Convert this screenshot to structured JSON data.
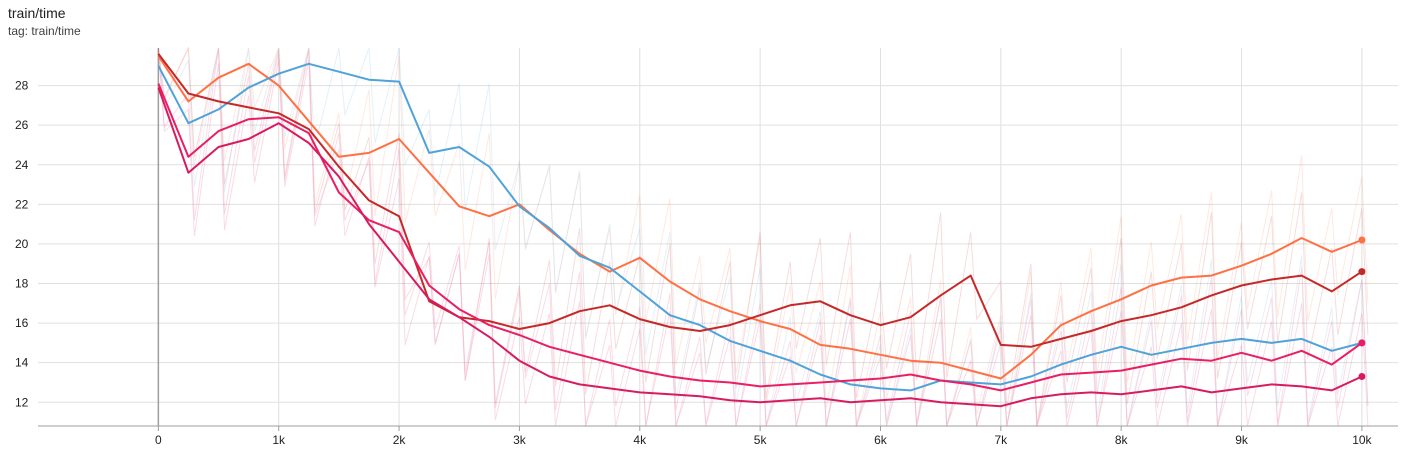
{
  "card": {
    "title": "train/time",
    "tag": "tag: train/time"
  },
  "chart_data": {
    "type": "line",
    "title": "train/time",
    "subtitle": "tag: train/time",
    "xlabel": "",
    "ylabel": "",
    "xlim": [
      -1000,
      10300
    ],
    "ylim": [
      10.8,
      29.9
    ],
    "x_ticks": [
      0,
      1000,
      2000,
      3000,
      4000,
      5000,
      6000,
      7000,
      8000,
      9000,
      10000
    ],
    "x_tick_labels": [
      "0",
      "1k",
      "2k",
      "3k",
      "4k",
      "5k",
      "6k",
      "7k",
      "8k",
      "9k",
      "10k"
    ],
    "y_ticks": [
      12,
      14,
      16,
      18,
      20,
      22,
      24,
      26,
      28
    ],
    "y_tick_labels": [
      "12",
      "14",
      "16",
      "18",
      "20",
      "22",
      "24",
      "26",
      "28"
    ],
    "grid": true,
    "legend": "none",
    "series": [
      {
        "color": "#ff7043",
        "x": [
          0,
          250,
          500,
          750,
          1000,
          1250,
          1500,
          1750,
          2000,
          2250,
          2500,
          2750,
          3000,
          3250,
          3500,
          3750,
          4000,
          4250,
          4500,
          4750,
          5000,
          5250,
          5500,
          5750,
          6000,
          6250,
          6500,
          6750,
          7000,
          7250,
          7500,
          7750,
          8000,
          8250,
          8500,
          8750,
          9000,
          9250,
          9500,
          9750,
          10000
        ],
        "values": [
          29.5,
          27.2,
          28.4,
          29.1,
          28.0,
          26.2,
          24.4,
          24.6,
          25.3,
          23.6,
          21.9,
          21.4,
          22.0,
          20.7,
          19.5,
          18.6,
          19.3,
          18.1,
          17.2,
          16.6,
          16.1,
          15.7,
          14.9,
          14.7,
          14.4,
          14.1,
          14.0,
          13.6,
          13.2,
          14.4,
          15.9,
          16.6,
          17.2,
          17.9,
          18.3,
          18.4,
          18.9,
          19.5,
          20.3,
          19.6,
          20.2
        ]
      },
      {
        "color": "#4fa3d9",
        "x": [
          0,
          250,
          500,
          750,
          1000,
          1250,
          1500,
          1750,
          2000,
          2250,
          2500,
          2750,
          3000,
          3250,
          3500,
          3750,
          4000,
          4250,
          4500,
          4750,
          5000,
          5250,
          5500,
          5750,
          6000,
          6250,
          6500,
          6750,
          7000,
          7250,
          7500,
          7750,
          8000,
          8250,
          8500,
          8750,
          9000,
          9250,
          9500,
          9750,
          10000
        ],
        "values": [
          29.0,
          26.1,
          26.8,
          27.9,
          28.6,
          29.1,
          28.7,
          28.3,
          28.2,
          24.6,
          24.9,
          23.9,
          21.9,
          20.8,
          19.4,
          18.8,
          17.6,
          16.4,
          15.9,
          15.1,
          14.6,
          14.1,
          13.4,
          12.9,
          12.7,
          12.6,
          13.1,
          13.0,
          12.9,
          13.3,
          13.9,
          14.4,
          14.8,
          14.4,
          14.7,
          15.0,
          15.2,
          15.0,
          15.2,
          14.6,
          15.0
        ]
      },
      {
        "color": "#c62828",
        "x": [
          0,
          250,
          500,
          750,
          1000,
          1250,
          1500,
          1750,
          2000,
          2250,
          2500,
          2750,
          3000,
          3250,
          3500,
          3750,
          4000,
          4250,
          4500,
          4750,
          5000,
          5250,
          5500,
          5750,
          6000,
          6250,
          6500,
          6750,
          7000,
          7250,
          7500,
          7750,
          8000,
          8250,
          8500,
          8750,
          9000,
          9250,
          9500,
          9750,
          10000
        ],
        "values": [
          29.6,
          27.6,
          27.2,
          26.9,
          26.6,
          25.8,
          23.9,
          22.2,
          21.4,
          17.1,
          16.3,
          16.1,
          15.7,
          16.0,
          16.6,
          16.9,
          16.2,
          15.8,
          15.6,
          15.9,
          16.4,
          16.9,
          17.1,
          16.4,
          15.9,
          16.3,
          17.4,
          18.4,
          14.9,
          14.8,
          15.2,
          15.6,
          16.1,
          16.4,
          16.8,
          17.4,
          17.9,
          18.2,
          18.4,
          17.6,
          18.6
        ]
      },
      {
        "color": "#e91e63",
        "x": [
          0,
          250,
          500,
          750,
          1000,
          1250,
          1500,
          1750,
          2000,
          2250,
          2500,
          2750,
          3000,
          3250,
          3500,
          3750,
          4000,
          4250,
          4500,
          4750,
          5000,
          5250,
          5500,
          5750,
          6000,
          6250,
          6500,
          6750,
          7000,
          7250,
          7500,
          7750,
          8000,
          8250,
          8500,
          8750,
          9000,
          9250,
          9500,
          9750,
          10000
        ],
        "values": [
          28.1,
          24.4,
          25.7,
          26.3,
          26.4,
          25.6,
          22.6,
          21.2,
          20.6,
          17.9,
          16.7,
          15.9,
          15.4,
          14.8,
          14.4,
          14.0,
          13.6,
          13.3,
          13.1,
          13.0,
          12.8,
          12.9,
          13.0,
          13.1,
          13.2,
          13.4,
          13.1,
          12.9,
          12.6,
          13.0,
          13.4,
          13.5,
          13.6,
          13.9,
          14.2,
          14.1,
          14.5,
          14.1,
          14.6,
          13.9,
          15.0
        ]
      },
      {
        "color": "#d81b60",
        "x": [
          0,
          250,
          500,
          750,
          1000,
          1250,
          1500,
          1750,
          2000,
          2250,
          2500,
          2750,
          3000,
          3250,
          3500,
          3750,
          4000,
          4250,
          4500,
          4750,
          5000,
          5250,
          5500,
          5750,
          6000,
          6250,
          6500,
          6750,
          7000,
          7250,
          7500,
          7750,
          8000,
          8250,
          8500,
          8750,
          9000,
          9250,
          9500,
          9750,
          10000
        ],
        "values": [
          27.9,
          23.6,
          24.9,
          25.3,
          26.1,
          25.1,
          23.4,
          21.0,
          19.1,
          17.2,
          16.3,
          15.3,
          14.1,
          13.3,
          12.9,
          12.7,
          12.5,
          12.4,
          12.3,
          12.1,
          12.0,
          12.1,
          12.2,
          12.0,
          12.1,
          12.2,
          12.0,
          11.9,
          11.8,
          12.2,
          12.4,
          12.5,
          12.4,
          12.6,
          12.8,
          12.5,
          12.7,
          12.9,
          12.8,
          12.6,
          13.3
        ]
      }
    ]
  }
}
